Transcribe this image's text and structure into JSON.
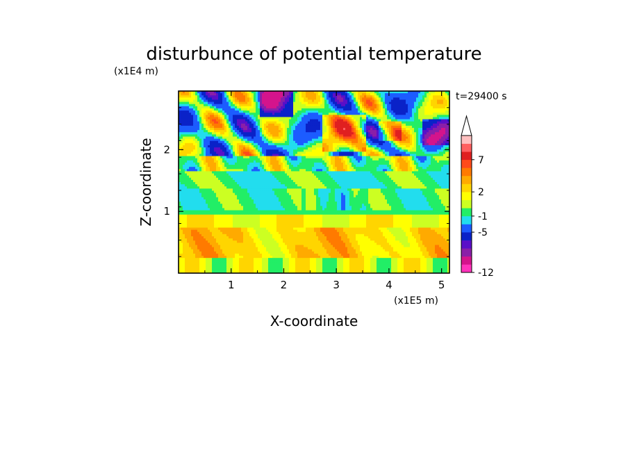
{
  "chart_data": {
    "type": "heatmap",
    "title": "disturbunce of potential temperature",
    "time_label": "t=29400 s",
    "xlabel": "X-coordinate",
    "ylabel": "Z-coordinate",
    "x_scale_label": "(x1E5 m)",
    "y_scale_label": "(x1E4 m)",
    "xlim": [
      0,
      5.15
    ],
    "ylim": [
      0,
      2.95
    ],
    "x_ticks": [
      {
        "value": 1,
        "label": "1"
      },
      {
        "value": 2,
        "label": "2"
      },
      {
        "value": 3,
        "label": "3"
      },
      {
        "value": 4,
        "label": "4"
      },
      {
        "value": 5,
        "label": "5"
      }
    ],
    "y_ticks": [
      {
        "value": 1,
        "label": "1"
      },
      {
        "value": 2,
        "label": "2"
      }
    ],
    "colorbar": {
      "extend": "max",
      "levels": [
        {
          "color": "#ff33bb"
        },
        {
          "color": "#d4148c"
        },
        {
          "color": "#8a1fa8"
        },
        {
          "color": "#5a0fc8"
        },
        {
          "color": "#0a22c8"
        },
        {
          "color": "#1c5cff"
        },
        {
          "color": "#22ddee"
        },
        {
          "color": "#22ee66"
        },
        {
          "color": "#ccff22"
        },
        {
          "color": "#ffff00"
        },
        {
          "color": "#ffd500"
        },
        {
          "color": "#ffaa00"
        },
        {
          "color": "#ff7a00"
        },
        {
          "color": "#ff4a1a"
        },
        {
          "color": "#e02020"
        },
        {
          "color": "#ff6060"
        },
        {
          "color": "#ffc0c0"
        }
      ],
      "tick_labels": [
        {
          "label": "-12",
          "level_index": 0
        },
        {
          "label": "-5",
          "level_index": 5
        },
        {
          "label": "-1",
          "level_index": 7
        },
        {
          "label": "2",
          "level_index": 10
        },
        {
          "label": "7",
          "level_index": 14
        }
      ]
    }
  }
}
